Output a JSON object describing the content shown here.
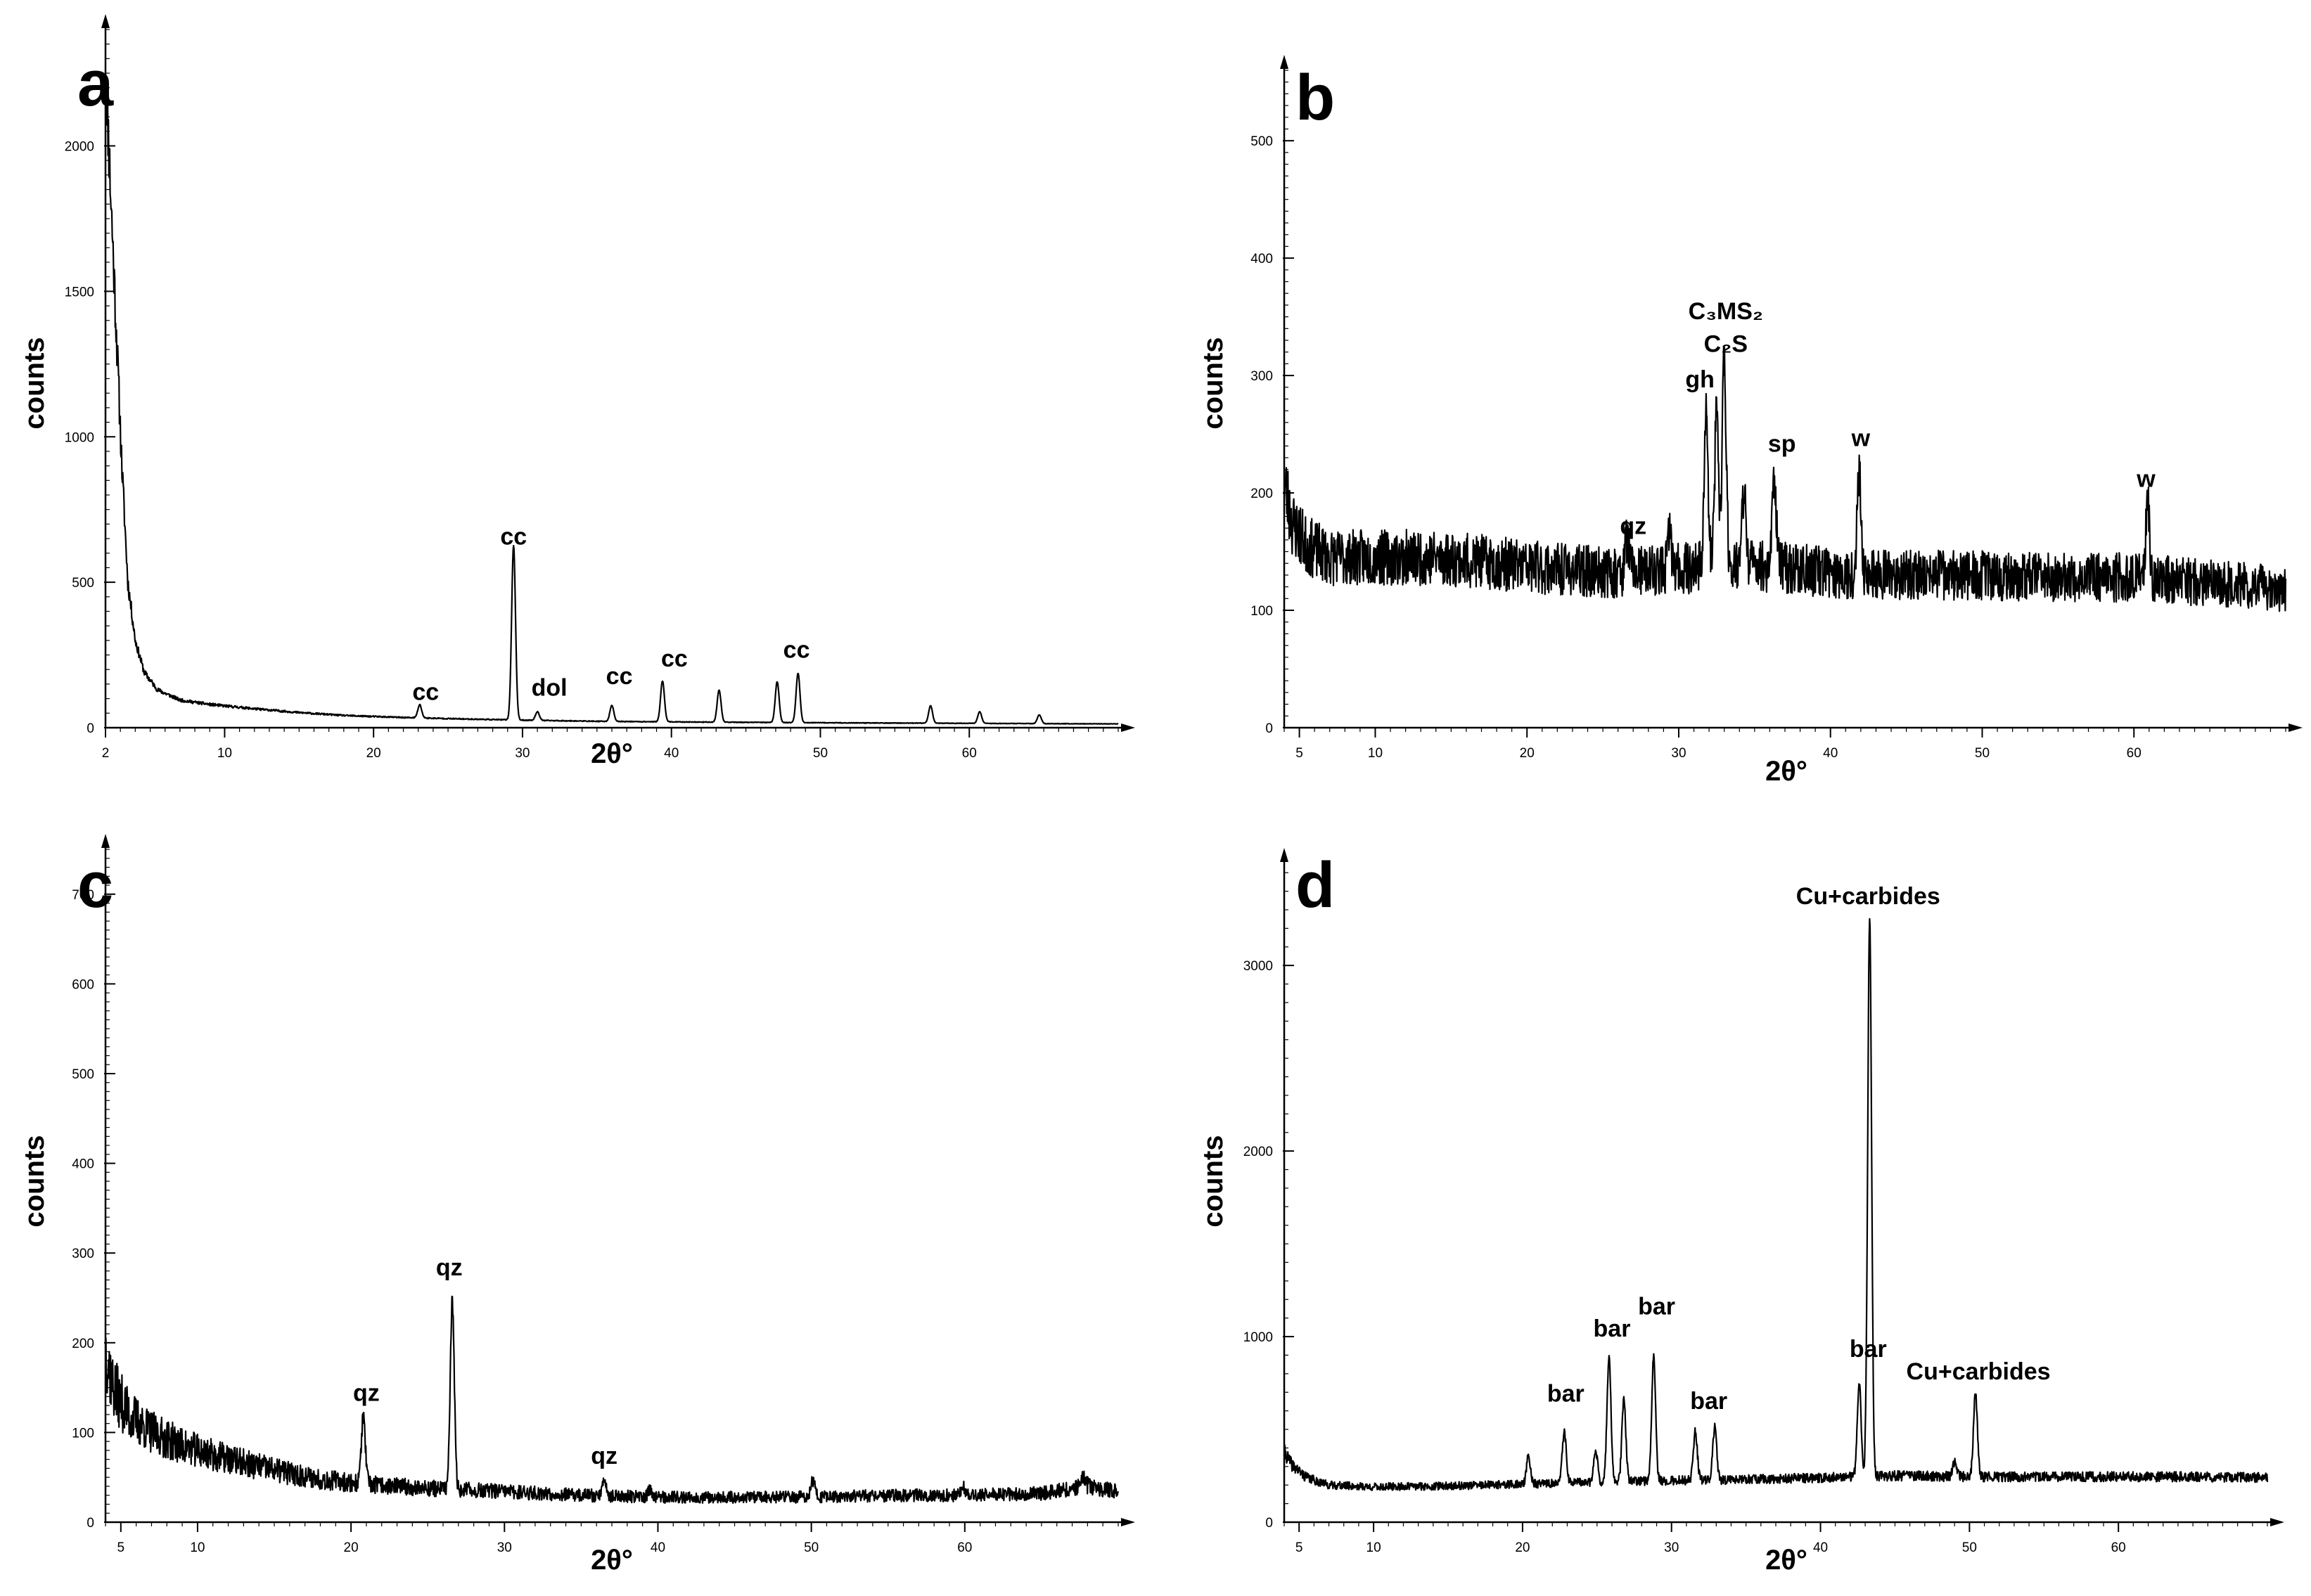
{
  "chart_data": [
    {
      "id": "a",
      "type": "line",
      "panel_label": "a",
      "xlabel": "2θ°",
      "ylabel": "counts",
      "xlim": [
        2,
        70
      ],
      "ylim": [
        0,
        2400
      ],
      "xticks": [
        2,
        10,
        20,
        30,
        40,
        50,
        60
      ],
      "yticks": [
        0,
        500,
        1000,
        1500,
        2000
      ],
      "series": [
        {
          "background": [
            [
              2,
              2300
            ],
            [
              2.3,
              1900
            ],
            [
              2.7,
              1400
            ],
            [
              3.1,
              900
            ],
            [
              3.5,
              500
            ],
            [
              4,
              300
            ],
            [
              4.6,
              190
            ],
            [
              5.5,
              130
            ],
            [
              7,
              95
            ],
            [
              9,
              80
            ],
            [
              12,
              65
            ],
            [
              15,
              52
            ],
            [
              18,
              42
            ],
            [
              22,
              35
            ],
            [
              26,
              30
            ],
            [
              30,
              26
            ],
            [
              35,
              22
            ],
            [
              40,
              20
            ],
            [
              50,
              17
            ],
            [
              60,
              15
            ],
            [
              70,
              13
            ]
          ],
          "peaks": [
            [
              23.1,
              45
            ],
            [
              29.4,
              600
            ],
            [
              31.0,
              30
            ],
            [
              36.0,
              55
            ],
            [
              39.4,
              140
            ],
            [
              43.2,
              110
            ],
            [
              47.1,
              140
            ],
            [
              48.5,
              170
            ],
            [
              57.4,
              60
            ],
            [
              60.7,
              40
            ],
            [
              64.7,
              30
            ]
          ]
        }
      ],
      "annotations": [
        {
          "text": "cc",
          "x": 23.5,
          "y": 95
        },
        {
          "text": "cc",
          "x": 29.4,
          "y": 630
        },
        {
          "text": "dol",
          "x": 31.8,
          "y": 110
        },
        {
          "text": "cc",
          "x": 36.5,
          "y": 150
        },
        {
          "text": "cc",
          "x": 40.2,
          "y": 210
        },
        {
          "text": "cc",
          "x": 48.4,
          "y": 240
        }
      ]
    },
    {
      "id": "b",
      "type": "line",
      "panel_label": "b",
      "xlabel": "2θ°",
      "ylabel": "counts",
      "xlim": [
        4,
        70
      ],
      "ylim": [
        0,
        560
      ],
      "xticks": [
        5,
        10,
        20,
        30,
        40,
        50,
        60
      ],
      "yticks": [
        0,
        100,
        200,
        300,
        400,
        500
      ],
      "series": [
        {
          "background": [
            [
              4,
              210
            ],
            [
              4.5,
              175
            ],
            [
              5.5,
              155
            ],
            [
              7,
              145
            ],
            [
              10,
              145
            ],
            [
              14,
              145
            ],
            [
              18,
              140
            ],
            [
              22,
              135
            ],
            [
              26,
              132
            ],
            [
              30,
              135
            ],
            [
              34,
              140
            ],
            [
              38,
              135
            ],
            [
              42,
              130
            ],
            [
              48,
              130
            ],
            [
              54,
              128
            ],
            [
              60,
              128
            ],
            [
              66,
              122
            ],
            [
              70,
              118
            ]
          ],
          "peaks": [
            [
              26.6,
              30
            ],
            [
              29.4,
              30
            ],
            [
              31.8,
              130
            ],
            [
              32.5,
              130
            ],
            [
              33.0,
              175
            ],
            [
              34.3,
              60
            ],
            [
              36.3,
              80
            ],
            [
              41.9,
              90
            ],
            [
              60.9,
              65
            ]
          ]
        }
      ],
      "annotations": [
        {
          "text": "qz",
          "x": 27.0,
          "y": 165
        },
        {
          "text": "gh",
          "x": 31.4,
          "y": 290
        },
        {
          "text": "C₂S",
          "x": 33.1,
          "y": 320
        },
        {
          "text": "C₃MS₂",
          "x": 33.1,
          "y": 348
        },
        {
          "text": "sp",
          "x": 36.8,
          "y": 235
        },
        {
          "text": "w",
          "x": 42.0,
          "y": 240
        },
        {
          "text": "w",
          "x": 60.8,
          "y": 205
        }
      ]
    },
    {
      "id": "c",
      "type": "line",
      "panel_label": "c",
      "xlabel": "2θ°",
      "ylabel": "counts",
      "xlim": [
        4,
        70
      ],
      "ylim": [
        0,
        750
      ],
      "xticks": [
        5,
        10,
        20,
        30,
        40,
        50,
        60
      ],
      "yticks": [
        0,
        100,
        200,
        300,
        400,
        500,
        600,
        700
      ],
      "series": [
        {
          "background": [
            [
              4,
              195
            ],
            [
              4.5,
              150
            ],
            [
              5.5,
              120
            ],
            [
              7,
              100
            ],
            [
              9,
              85
            ],
            [
              12,
              70
            ],
            [
              15,
              58
            ],
            [
              18,
              48
            ],
            [
              21,
              42
            ],
            [
              25,
              38
            ],
            [
              30,
              34
            ],
            [
              35,
              30
            ],
            [
              40,
              28
            ],
            [
              45,
              28
            ],
            [
              50,
              28
            ],
            [
              55,
              30
            ],
            [
              60,
              30
            ],
            [
              65,
              32
            ],
            [
              68,
              40
            ],
            [
              70,
              34
            ]
          ],
          "peaks": [
            [
              20.8,
              75
            ],
            [
              26.6,
              210
            ],
            [
              36.5,
              20
            ],
            [
              39.5,
              8
            ],
            [
              50.1,
              18
            ],
            [
              59.9,
              10
            ],
            [
              67.7,
              12
            ]
          ]
        }
      ],
      "annotations": [
        {
          "text": "qz",
          "x": 21.0,
          "y": 135
        },
        {
          "text": "qz",
          "x": 26.4,
          "y": 275
        },
        {
          "text": "qz",
          "x": 36.5,
          "y": 65
        }
      ]
    },
    {
      "id": "d",
      "type": "line",
      "panel_label": "d",
      "xlabel": "2θ°",
      "ylabel": "counts",
      "xlim": [
        4,
        70
      ],
      "ylim": [
        0,
        3550
      ],
      "xticks": [
        5,
        10,
        20,
        30,
        40,
        50,
        60
      ],
      "yticks": [
        0,
        1000,
        2000,
        3000
      ],
      "series": [
        {
          "background": [
            [
              4,
              380
            ],
            [
              4.5,
              310
            ],
            [
              5.5,
              240
            ],
            [
              7,
              200
            ],
            [
              10,
              190
            ],
            [
              15,
              195
            ],
            [
              20,
              205
            ],
            [
              25,
              215
            ],
            [
              30,
              225
            ],
            [
              35,
              230
            ],
            [
              40,
              240
            ],
            [
              45,
              250
            ],
            [
              50,
              245
            ],
            [
              55,
              245
            ],
            [
              60,
              245
            ],
            [
              65,
              245
            ],
            [
              70,
              240
            ]
          ],
          "peaks": [
            [
              20.4,
              150
            ],
            [
              22.8,
              280
            ],
            [
              24.9,
              180
            ],
            [
              25.8,
              680
            ],
            [
              26.8,
              450
            ],
            [
              28.8,
              680
            ],
            [
              31.6,
              260
            ],
            [
              32.9,
              280
            ],
            [
              42.6,
              500
            ],
            [
              43.3,
              3000
            ],
            [
              50.4,
              450
            ],
            [
              49.0,
              80
            ]
          ]
        }
      ],
      "annotations": [
        {
          "text": "bar",
          "x": 22.9,
          "y": 650
        },
        {
          "text": "bar",
          "x": 26.0,
          "y": 1000
        },
        {
          "text": "bar",
          "x": 29.0,
          "y": 1120
        },
        {
          "text": "bar",
          "x": 32.5,
          "y": 610
        },
        {
          "text": "bar",
          "x": 43.2,
          "y": 890
        },
        {
          "text": "Cu+carbides",
          "x": 43.2,
          "y": 3330
        },
        {
          "text": "Cu+carbides",
          "x": 50.6,
          "y": 770
        }
      ]
    }
  ]
}
